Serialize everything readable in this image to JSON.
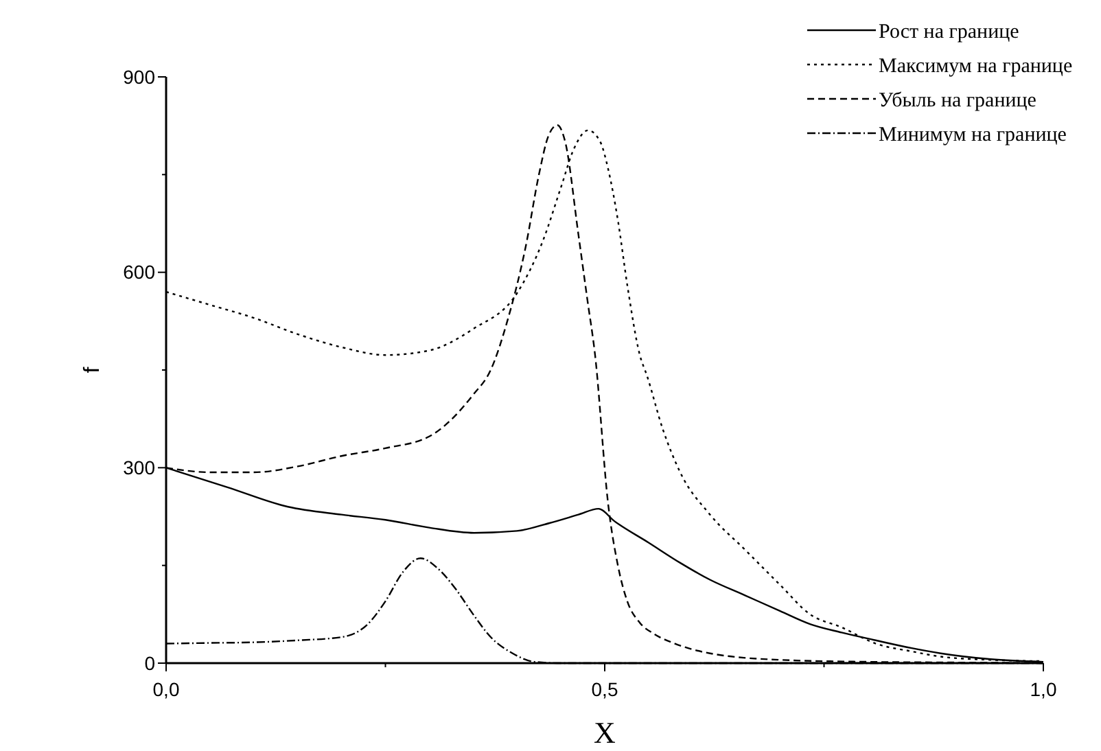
{
  "chart_data": {
    "type": "line",
    "xlabel": "X",
    "ylabel": "f",
    "xlim": [
      0,
      1
    ],
    "ylim": [
      0,
      900
    ],
    "xticks": [
      {
        "value": 0,
        "label": "0,0"
      },
      {
        "value": 0.25,
        "label": null
      },
      {
        "value": 0.5,
        "label": "0,5"
      },
      {
        "value": 0.75,
        "label": null
      },
      {
        "value": 1,
        "label": "1,0"
      }
    ],
    "yticks": [
      0,
      {
        "value": 150,
        "label": null
      },
      300,
      {
        "value": 450,
        "label": null
      },
      600,
      {
        "value": 750,
        "label": null
      },
      900
    ],
    "grid": false,
    "legend": "top right",
    "marker": "none",
    "series": [
      {
        "name": "Рост на границе",
        "color": "#000000",
        "line_style": "solid",
        "x": [
          0,
          0.07,
          0.139,
          0.2,
          0.25,
          0.3,
          0.351,
          0.4,
          0.437,
          0.47,
          0.493,
          0.511,
          0.55,
          0.586,
          0.62,
          0.66,
          0.7,
          0.734,
          0.77,
          0.809,
          0.85,
          0.883,
          0.94,
          1
        ],
        "values": [
          300,
          270,
          240,
          228,
          220,
          208,
          200,
          203,
          215,
          228,
          237,
          218,
          185,
          154,
          128,
          104,
          80,
          60,
          47,
          35,
          23,
          15,
          6,
          2
        ]
      },
      {
        "name": "Максимум на границе",
        "color": "#000000",
        "line_style": "dotted",
        "x": [
          0,
          0.05,
          0.1,
          0.15,
          0.2,
          0.25,
          0.3,
          0.35,
          0.4,
          0.43,
          0.45,
          0.465,
          0.481,
          0.495,
          0.504,
          0.515,
          0.526,
          0.54,
          0.548,
          0.566,
          0.586,
          0.62,
          0.66,
          0.7,
          0.734,
          0.77,
          0.809,
          0.85,
          0.883,
          0.94,
          1
        ],
        "values": [
          570,
          550,
          530,
          505,
          485,
          473,
          480,
          513,
          568,
          650,
          730,
          790,
          818,
          800,
          758,
          680,
          578,
          473,
          442,
          360,
          293,
          228,
          174,
          120,
          75,
          55,
          30,
          18,
          10,
          5,
          3
        ]
      },
      {
        "name": "Убыль на границе",
        "color": "#000000",
        "line_style": "dashed",
        "x": [
          0,
          0.05,
          0.1,
          0.15,
          0.2,
          0.25,
          0.3,
          0.35,
          0.37,
          0.39,
          0.41,
          0.425,
          0.436,
          0.446,
          0.455,
          0.47,
          0.48,
          0.489,
          0.504,
          0.515,
          0.526,
          0.54,
          0.556,
          0.58,
          0.62,
          0.7,
          0.8,
          0.9,
          1
        ],
        "values": [
          300,
          293,
          293,
          302,
          318,
          330,
          348,
          412,
          450,
          530,
          640,
          750,
          810,
          826,
          800,
          658,
          560,
          473,
          243,
          150,
          94,
          62,
          45,
          30,
          15,
          5,
          2,
          1,
          0
        ]
      },
      {
        "name": "Минимум на границе",
        "color": "#000000",
        "line_style": "dashdot",
        "x": [
          0,
          0.05,
          0.1,
          0.15,
          0.2,
          0.23,
          0.25,
          0.27,
          0.29,
          0.31,
          0.33,
          0.35,
          0.37,
          0.395,
          0.42,
          0.45,
          0.5,
          0.6,
          0.8,
          1
        ],
        "values": [
          30,
          31,
          32,
          35,
          40,
          60,
          95,
          140,
          161,
          145,
          114,
          75,
          40,
          15,
          2,
          0,
          0,
          0,
          0,
          0
        ]
      }
    ]
  }
}
